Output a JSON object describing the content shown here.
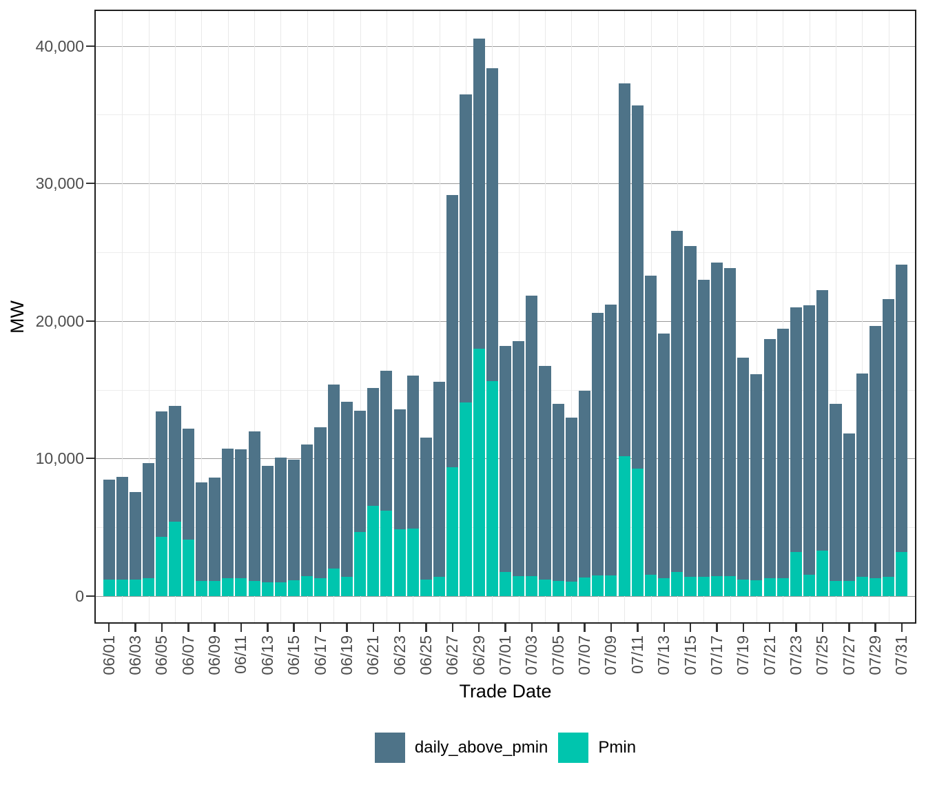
{
  "chart_data": {
    "type": "bar",
    "stacked": true,
    "title": "",
    "xlabel": "Trade Date",
    "ylabel": "MW",
    "legend_position": "bottom",
    "grid": {
      "major_color": "#999999",
      "minor_color": "#ededed",
      "vertical_color": "#e9e9e9"
    },
    "ylim": [
      -2100,
      42550
    ],
    "y_ticks": [
      {
        "value": 0,
        "label": "0"
      },
      {
        "value": 10000,
        "label": "10,000"
      },
      {
        "value": 20000,
        "label": "20,000"
      },
      {
        "value": 30000,
        "label": "30,000"
      },
      {
        "value": 40000,
        "label": "40,000"
      }
    ],
    "y_minor_ticks": [
      5000,
      15000,
      25000,
      35000
    ],
    "x_label_every": 2,
    "categories": [
      "06/01",
      "06/02",
      "06/03",
      "06/04",
      "06/05",
      "06/06",
      "06/07",
      "06/08",
      "06/09",
      "06/10",
      "06/11",
      "06/12",
      "06/13",
      "06/14",
      "06/15",
      "06/16",
      "06/17",
      "06/18",
      "06/19",
      "06/20",
      "06/21",
      "06/22",
      "06/23",
      "06/24",
      "06/25",
      "06/26",
      "06/27",
      "06/28",
      "06/29",
      "06/30",
      "07/01",
      "07/02",
      "07/03",
      "07/04",
      "07/05",
      "07/06",
      "07/07",
      "07/08",
      "07/09",
      "07/10",
      "07/11",
      "07/12",
      "07/13",
      "07/14",
      "07/15",
      "07/16",
      "07/17",
      "07/18",
      "07/19",
      "07/20",
      "07/21",
      "07/22",
      "07/23",
      "07/24",
      "07/25",
      "07/26",
      "07/27",
      "07/28",
      "07/29",
      "07/30",
      "07/31"
    ],
    "series": [
      {
        "name": "daily_above_pmin",
        "color": "#4e7388",
        "values": [
          7250,
          7450,
          6350,
          8350,
          9150,
          8450,
          8100,
          7150,
          7500,
          9400,
          9350,
          10900,
          8450,
          9050,
          8750,
          9550,
          11000,
          13400,
          12750,
          8850,
          8600,
          10200,
          8750,
          11150,
          10350,
          14200,
          19800,
          22400,
          22550,
          22750,
          16450,
          17100,
          20400,
          15550,
          12900,
          11950,
          13600,
          19100,
          19700,
          27150,
          26400,
          21750,
          17800,
          24800,
          24050,
          21600,
          22800,
          22400,
          16150,
          15000,
          17400,
          18150,
          17800,
          19600,
          18950,
          12900,
          10750,
          14800,
          18350,
          20200,
          20900
        ]
      },
      {
        "name": "Pmin",
        "color": "#00c5ae",
        "values": [
          1200,
          1200,
          1200,
          1300,
          4300,
          5400,
          4100,
          1100,
          1100,
          1300,
          1300,
          1100,
          1000,
          1000,
          1150,
          1450,
          1300,
          2000,
          1400,
          4650,
          6550,
          6200,
          4850,
          4900,
          1200,
          1400,
          9350,
          14100,
          18000,
          15650,
          1750,
          1450,
          1450,
          1200,
          1100,
          1050,
          1350,
          1500,
          1500,
          10150,
          9250,
          1550,
          1300,
          1750,
          1400,
          1400,
          1450,
          1450,
          1200,
          1150,
          1300,
          1300,
          3200,
          1550,
          3300,
          1100,
          1100,
          1400,
          1300,
          1400,
          3200
        ]
      }
    ]
  },
  "legend": {
    "items": [
      {
        "label": "daily_above_pmin",
        "color": "#4e7388"
      },
      {
        "label": "Pmin",
        "color": "#00c5ae"
      }
    ]
  },
  "axes": {
    "y_title": "MW",
    "x_title": "Trade Date"
  }
}
